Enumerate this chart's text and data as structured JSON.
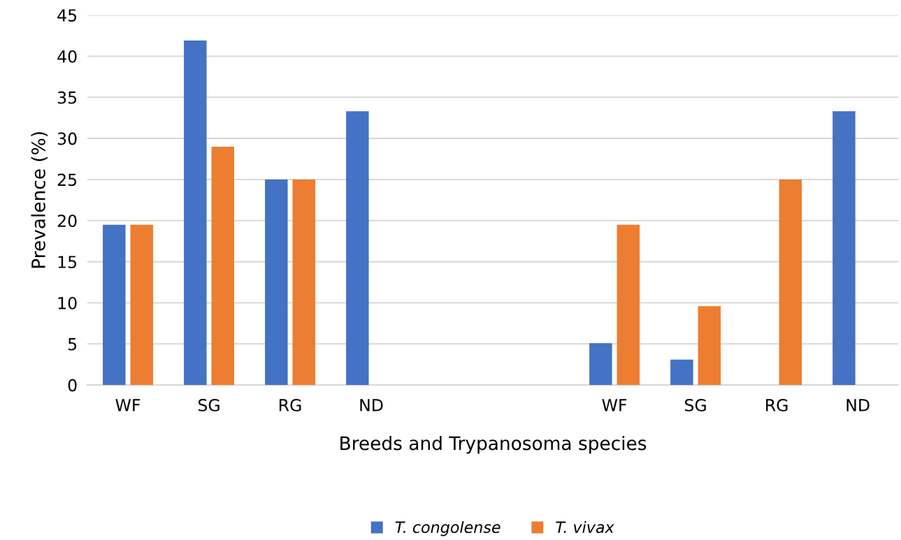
{
  "chart_data": {
    "type": "bar",
    "xlabel": "Breeds and Trypanosoma species",
    "ylabel": "Prevalence (%)",
    "categories": [
      "WF",
      "SG",
      "RG",
      "ND",
      null,
      null,
      "WF",
      "SG",
      "RG",
      "ND"
    ],
    "series": [
      {
        "name": "T. congolense",
        "color": "#4472c4",
        "values": [
          19.5,
          41.9,
          25,
          33.3,
          null,
          null,
          5.1,
          3.1,
          null,
          33.3
        ]
      },
      {
        "name": "T. vivax",
        "color": "#ed7d31",
        "values": [
          19.5,
          29.0,
          25,
          null,
          null,
          null,
          19.5,
          9.6,
          25,
          null
        ]
      }
    ],
    "ylim": [
      0,
      45
    ],
    "yticks": [
      0,
      5,
      10,
      15,
      20,
      25,
      30,
      35,
      40,
      45
    ],
    "grid": "y",
    "legend": "bottom"
  }
}
